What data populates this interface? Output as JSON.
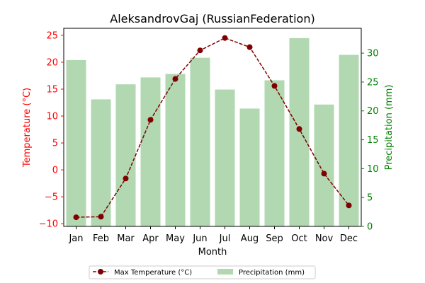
{
  "chart_data": {
    "type": "bar+line",
    "title": "AleksandrovGaj (RussianFederation)",
    "xlabel": "Month",
    "ylabel_left": "Temperature (°C)",
    "ylabel_right": "Precipitation (mm)",
    "categories": [
      "Jan",
      "Feb",
      "Mar",
      "Apr",
      "May",
      "Jun",
      "Jul",
      "Aug",
      "Sep",
      "Oct",
      "Nov",
      "Dec"
    ],
    "series": [
      {
        "name": "Max Temperature (°C)",
        "type": "line",
        "axis": "left",
        "values": [
          -8.8,
          -8.7,
          -1.6,
          9.3,
          16.9,
          22.2,
          24.5,
          22.8,
          15.6,
          7.6,
          -0.7,
          -6.6
        ]
      },
      {
        "name": "Precipitation (mm)",
        "type": "bar",
        "axis": "right",
        "values": [
          28.8,
          22.0,
          24.6,
          25.8,
          26.4,
          29.2,
          23.7,
          20.4,
          25.3,
          32.6,
          21.1,
          29.7
        ]
      }
    ],
    "ylim_left": [
      -10.5,
      26.3
    ],
    "ylim_right": [
      0,
      34.3
    ],
    "yticks_left": [
      -10,
      -5,
      0,
      5,
      10,
      15,
      20,
      25
    ],
    "yticks_right": [
      0,
      5,
      10,
      15,
      20,
      25,
      30
    ],
    "colors": {
      "line": "#800000",
      "bar": "#b2d8b2",
      "left_axis": "#ff0000",
      "right_axis": "#008000"
    },
    "legend_position": "bottom-center",
    "grid": false
  }
}
